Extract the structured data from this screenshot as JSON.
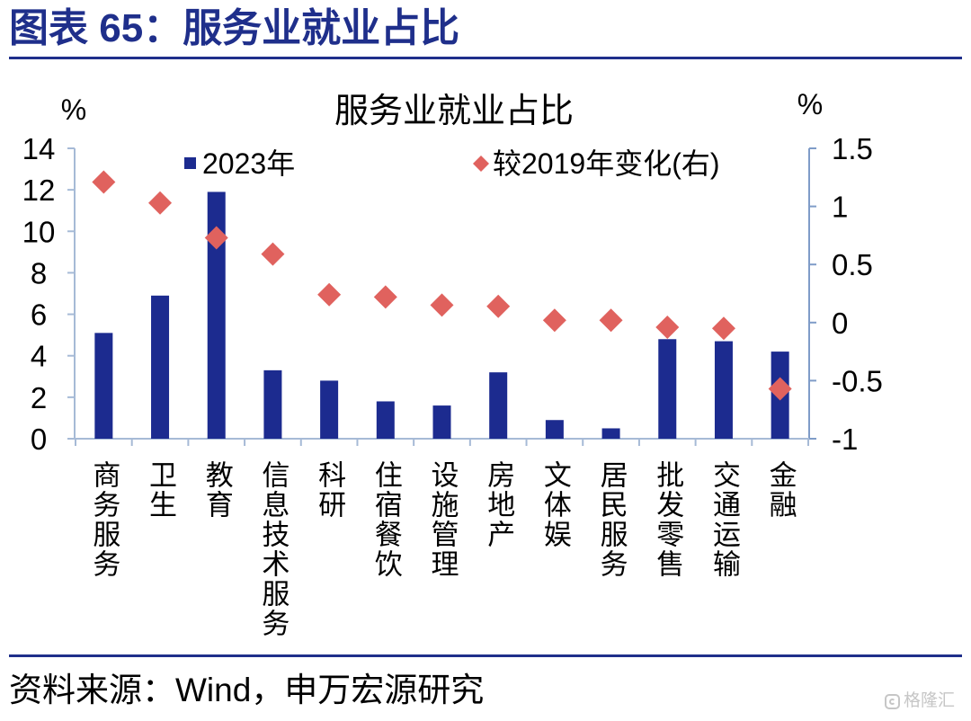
{
  "header": {
    "title": "图表 65：服务业就业占比"
  },
  "footer": {
    "source": "资料来源：Wind，申万宏源研究",
    "watermark": "格隆汇"
  },
  "colors": {
    "heading": "#1f2f8b",
    "bar": "#1c2b8f",
    "diamond": "#e0625e",
    "axis_left": "#a6bad6",
    "axis_right": "#7f9cc8",
    "watermark": "#c6c6c6"
  },
  "chart_data": {
    "type": "bar",
    "title": "服务业就业占比",
    "y_unit_left": "%",
    "y_unit_right": "%",
    "categories": [
      "商务服务",
      "卫生",
      "教育",
      "信息技术服务",
      "科研",
      "住宿餐饮",
      "设施管理",
      "房地产",
      "文体娱",
      "居民服务",
      "批发零售",
      "交通运输",
      "金融"
    ],
    "ylim_left": [
      0,
      14
    ],
    "yticks_left": [
      0,
      2,
      4,
      6,
      8,
      10,
      12,
      14
    ],
    "ylim_right": [
      -1,
      1.5
    ],
    "yticks_right": [
      -1,
      -0.5,
      0,
      0.5,
      1,
      1.5
    ],
    "grid": false,
    "legend_position": "top",
    "series": [
      {
        "name": "2023年",
        "type": "bar",
        "axis": "left",
        "values": [
          5.1,
          6.9,
          11.9,
          3.3,
          2.8,
          1.8,
          1.6,
          3.2,
          0.9,
          0.5,
          4.8,
          4.7,
          4.2
        ]
      },
      {
        "name": "较2019年变化(右)",
        "type": "scatter",
        "marker": "diamond",
        "axis": "right",
        "values": [
          1.21,
          1.03,
          0.73,
          0.59,
          0.24,
          0.22,
          0.15,
          0.14,
          0.02,
          0.02,
          -0.04,
          -0.05,
          -0.57
        ]
      }
    ]
  }
}
